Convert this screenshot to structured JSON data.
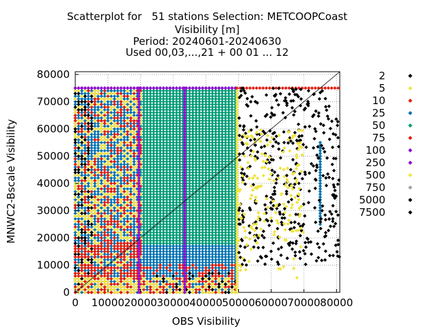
{
  "chart_data": {
    "type": "scatter",
    "title_lines": [
      "Scatterplot for   51 stations Selection: METCOOPCoast",
      "Visibility [m]",
      "Period: 20240601-20240630",
      "Used 00,03,...,21 + 00 01 ... 12"
    ],
    "xlabel": "OBS Visibility",
    "ylabel": "MNWC2-Bscale Visibility",
    "xlim": [
      0,
      81000
    ],
    "ylim": [
      0,
      81000
    ],
    "x_ticks": [
      "0",
      "10000",
      "20000",
      "30000",
      "40000",
      "50000",
      "60000",
      "70000",
      "80000"
    ],
    "y_ticks": [
      "0",
      "10000",
      "20000",
      "30000",
      "40000",
      "50000",
      "60000",
      "70000",
      "80000"
    ],
    "grid": true,
    "diagonal_line": true,
    "legend_position": "right",
    "legend": [
      {
        "label": "2",
        "color": "#000000"
      },
      {
        "label": "5",
        "color": "#f0e442"
      },
      {
        "label": "10",
        "color": "#e51e10"
      },
      {
        "label": "25",
        "color": "#0072b2"
      },
      {
        "label": "50",
        "color": "#009e73"
      },
      {
        "label": "75",
        "color": "#e51e10"
      },
      {
        "label": "100",
        "color": "#9400d3"
      },
      {
        "label": "250",
        "color": "#9400d3"
      },
      {
        "label": "500",
        "color": "#f0e442"
      },
      {
        "label": "750",
        "color": "#a0a0a0"
      },
      {
        "label": "5000",
        "color": "#000000"
      },
      {
        "label": "7500",
        "color": "#000000"
      }
    ],
    "density_regions_note_free": true,
    "regions": [
      {
        "x": [
          0,
          49500
        ],
        "y": [
          0,
          75000
        ],
        "color": "#0072b2"
      },
      {
        "x": [
          20000,
          49500
        ],
        "y": [
          18000,
          75000
        ],
        "color": "#009e73"
      },
      {
        "x": [
          0,
          20000
        ],
        "y": [
          0,
          75000
        ],
        "color": "#e51e10",
        "density": 0.35
      },
      {
        "x": [
          0,
          20000
        ],
        "y": [
          0,
          75000
        ],
        "color": "#f0e442",
        "density": 0.3
      },
      {
        "x": [
          0,
          5000
        ],
        "y": [
          0,
          75000
        ],
        "color": "#000000",
        "density": 0.25
      },
      {
        "x": [
          0,
          49500
        ],
        "y": [
          0,
          10000
        ],
        "color": "#e51e10",
        "density": 0.45
      },
      {
        "x": [
          0,
          49500
        ],
        "y": [
          0,
          5000
        ],
        "color": "#f0e442",
        "density": 0.45
      },
      {
        "x": [
          25000,
          49500
        ],
        "y": [
          0,
          7000
        ],
        "color": "#000000",
        "density": 0.12
      },
      {
        "x": [
          0,
          20000
        ],
        "y": [
          13000,
          18000
        ],
        "color": "#e51e10",
        "density": 0.6
      }
    ],
    "lines_vertical": [
      {
        "x": 19500,
        "y": [
          0,
          75000
        ],
        "color": "#9400d3"
      },
      {
        "x": 33500,
        "y": [
          0,
          75000
        ],
        "color": "#9400d3"
      },
      {
        "x": 49500,
        "y": [
          0,
          75000
        ],
        "color": "#f0e442"
      },
      {
        "x": 75000,
        "y": [
          25000,
          55000
        ],
        "color": "#0072b2"
      }
    ],
    "lines_horizontal": [
      {
        "y": 75000,
        "x": [
          0,
          49500
        ],
        "color": "#9400d3"
      },
      {
        "y": 75000,
        "x": [
          49500,
          81000
        ],
        "color": "#e51e10"
      }
    ],
    "sparse": [
      {
        "x": [
          50000,
          81000
        ],
        "y": [
          10000,
          75000
        ],
        "color": "#000000",
        "count": 420
      },
      {
        "x": [
          50000,
          70000
        ],
        "y": [
          20000,
          60000
        ],
        "color": "#f0e442",
        "count": 160
      },
      {
        "x": [
          50000,
          70000
        ],
        "y": [
          5000,
          20000
        ],
        "color": "#f0e442",
        "count": 20
      }
    ]
  }
}
